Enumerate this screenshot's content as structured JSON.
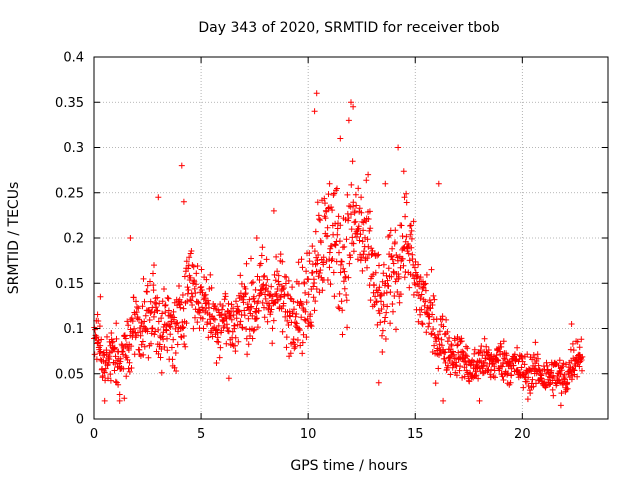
{
  "chart_data": {
    "type": "scatter",
    "title": "Day 343 of 2020, SRMTID for receiver tbob",
    "xlabel": "GPS time / hours",
    "ylabel": "SRMTID / TECUs",
    "xlim": [
      0,
      24
    ],
    "ylim": [
      0,
      0.4
    ],
    "grid": true,
    "marker": "+",
    "color": "#ff0000",
    "xticks": [
      0,
      5,
      10,
      15,
      20
    ],
    "xtick_labels": [
      "0",
      "5",
      "10",
      "15",
      "20"
    ],
    "yticks": [
      0,
      0.05,
      0.1,
      0.15,
      0.2,
      0.25,
      0.3,
      0.35,
      0.4
    ],
    "ytick_labels": [
      "0",
      "0.05",
      "0.1",
      "0.15",
      "0.2",
      "0.25",
      "0.3",
      "0.35",
      "0.4"
    ],
    "series": [
      {
        "name": "SRMTID",
        "envelope_x": [
          0,
          0.5,
          1,
          1.5,
          2,
          2.5,
          3,
          3.5,
          4,
          4.5,
          5,
          5.5,
          6,
          6.5,
          7,
          7.5,
          8,
          8.5,
          9,
          9.5,
          10,
          10.5,
          11,
          11.5,
          12,
          12.5,
          13,
          13.5,
          14,
          14.5,
          15,
          15.5,
          16,
          16.5,
          17,
          17.5,
          18,
          18.5,
          19,
          19.5,
          20,
          20.5,
          21,
          21.5,
          22,
          22.5,
          22.8
        ],
        "envelope_mean": [
          0.095,
          0.06,
          0.065,
          0.08,
          0.11,
          0.1,
          0.115,
          0.1,
          0.11,
          0.145,
          0.13,
          0.125,
          0.11,
          0.1,
          0.12,
          0.14,
          0.14,
          0.13,
          0.12,
          0.13,
          0.14,
          0.18,
          0.2,
          0.19,
          0.21,
          0.2,
          0.15,
          0.13,
          0.17,
          0.19,
          0.15,
          0.13,
          0.1,
          0.07,
          0.07,
          0.06,
          0.065,
          0.06,
          0.06,
          0.065,
          0.055,
          0.05,
          0.045,
          0.05,
          0.05,
          0.065,
          0.07
        ],
        "envelope_spread": [
          0.03,
          0.025,
          0.03,
          0.035,
          0.04,
          0.035,
          0.045,
          0.04,
          0.04,
          0.045,
          0.035,
          0.035,
          0.035,
          0.035,
          0.035,
          0.045,
          0.045,
          0.04,
          0.04,
          0.04,
          0.05,
          0.06,
          0.06,
          0.06,
          0.065,
          0.06,
          0.05,
          0.045,
          0.05,
          0.05,
          0.045,
          0.04,
          0.035,
          0.025,
          0.02,
          0.02,
          0.02,
          0.02,
          0.02,
          0.02,
          0.02,
          0.02,
          0.02,
          0.02,
          0.02,
          0.02,
          0.02
        ],
        "peaks": [
          {
            "x": 0.3,
            "y": 0.135
          },
          {
            "x": 1.7,
            "y": 0.2
          },
          {
            "x": 2.8,
            "y": 0.17
          },
          {
            "x": 3.0,
            "y": 0.245
          },
          {
            "x": 4.1,
            "y": 0.28
          },
          {
            "x": 4.2,
            "y": 0.24
          },
          {
            "x": 7.6,
            "y": 0.2
          },
          {
            "x": 8.4,
            "y": 0.23
          },
          {
            "x": 10.3,
            "y": 0.34
          },
          {
            "x": 10.4,
            "y": 0.36
          },
          {
            "x": 11.0,
            "y": 0.26
          },
          {
            "x": 11.5,
            "y": 0.31
          },
          {
            "x": 11.9,
            "y": 0.33
          },
          {
            "x": 12.0,
            "y": 0.35
          },
          {
            "x": 12.1,
            "y": 0.345
          },
          {
            "x": 12.8,
            "y": 0.27
          },
          {
            "x": 14.2,
            "y": 0.3
          },
          {
            "x": 13.6,
            "y": 0.26
          },
          {
            "x": 14.5,
            "y": 0.245
          },
          {
            "x": 16.1,
            "y": 0.26
          },
          {
            "x": 0.5,
            "y": 0.02
          },
          {
            "x": 1.2,
            "y": 0.02
          },
          {
            "x": 6.3,
            "y": 0.045
          },
          {
            "x": 13.3,
            "y": 0.04
          },
          {
            "x": 16.3,
            "y": 0.02
          },
          {
            "x": 18.0,
            "y": 0.02
          },
          {
            "x": 21.8,
            "y": 0.015
          },
          {
            "x": 22.3,
            "y": 0.105
          }
        ]
      }
    ]
  }
}
